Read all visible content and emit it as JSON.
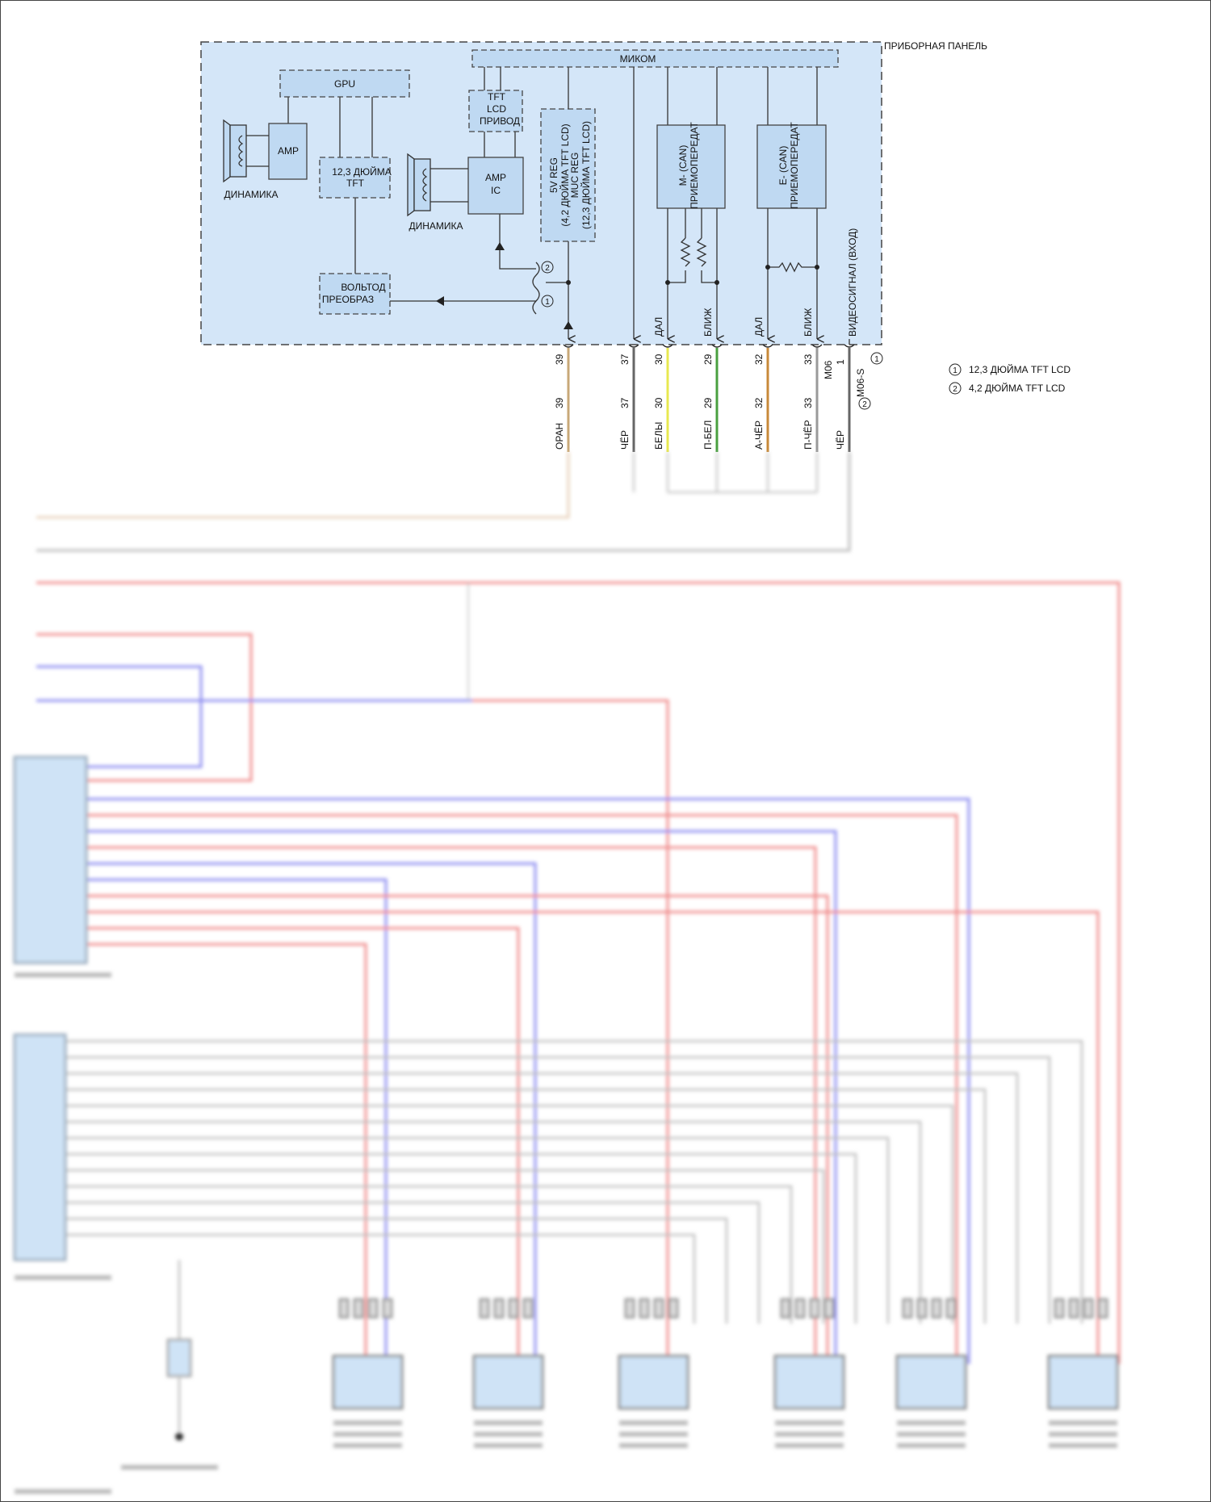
{
  "panel": {
    "title": "ПРИБОРНАЯ ПАНЕЛЬ",
    "fill_color": "#d4e6f8",
    "blocks": {
      "micom": "МИКОМ",
      "gpu": "GPU",
      "amp": "AMP",
      "speaker_left": "ДИНАМИКА",
      "tft123": [
        "12,3 ДЮЙМА",
        "TFT"
      ],
      "voltage_converter": [
        "ВОЛЬТОД",
        "ПРЕОБРАЗ"
      ],
      "tft_lcd_driver": [
        "TFT",
        "LCD",
        "ПРИВОД"
      ],
      "amp_ic": [
        "AMP",
        "IC"
      ],
      "speaker_right": "ДИНАМИКА",
      "regulator": [
        "5V REG",
        "(4,2 ДЮЙМА TFT LCD)",
        "MUC REG",
        "(12,3 ДЮЙМА TFT LCD)"
      ],
      "m_can": [
        "M- (CAN)",
        "ПРИЕМОПЕРЕДАТ"
      ],
      "e_can": [
        "E- (CAN)",
        "ПРИЕМОПЕРЕДАТ"
      ]
    },
    "signal_labels": {
      "m_high": "ДАЛ",
      "m_low": "БЛИЖ",
      "e_high": "ДАЛ",
      "e_low": "БЛИЖ",
      "video": "ВИДЕОСИГНАЛ (ВХОД)"
    },
    "variant_marks": [
      "1",
      "2"
    ]
  },
  "pins": [
    {
      "pin": "39",
      "wire": "39",
      "color_label": "ОРАН",
      "color": "#c8a878"
    },
    {
      "pin": "37",
      "wire": "37",
      "color_label": "ЧЁР",
      "color": "#666666"
    },
    {
      "pin": "30",
      "wire": "30",
      "color_label": "БЕЛЫ",
      "color": "#e8e850"
    },
    {
      "pin": "29",
      "wire": "29",
      "color_label": "П-БЕЛ",
      "color": "#4aa040"
    },
    {
      "pin": "32",
      "wire": "32",
      "color_label": "А-ЧЁР",
      "color": "#c88a3a"
    },
    {
      "pin": "33",
      "wire": "33",
      "color_label": "П-ЧЁР",
      "color": "#9a9a9a"
    },
    {
      "pin": "1",
      "wire": "",
      "color_label": "ЧЁР",
      "color": "#666666"
    }
  ],
  "connectors": {
    "main": "M06",
    "sub": "M06-S",
    "sub_variant": "1",
    "wire_variant": "2"
  },
  "legend": [
    {
      "mark": "1",
      "text": "12,3 ДЮЙМА TFT LCD"
    },
    {
      "mark": "2",
      "text": "4,2 ДЮЙМА TFT LCD"
    }
  ],
  "wire_colors": {
    "red": "#f08c8c",
    "blue": "#8c8cf0",
    "gray": "#bdbdbd",
    "tan": "#e8d2bc"
  }
}
